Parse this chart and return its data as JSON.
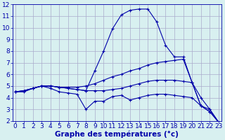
{
  "xlabel": "Graphe des températures (°c)",
  "hours": [
    0,
    1,
    2,
    3,
    4,
    5,
    6,
    7,
    8,
    9,
    10,
    11,
    12,
    13,
    14,
    15,
    16,
    17,
    18,
    19,
    20,
    21,
    22,
    23
  ],
  "line_peak": [
    4.5,
    4.6,
    4.8,
    5.0,
    5.0,
    4.9,
    4.8,
    4.7,
    4.6,
    6.3,
    8.0,
    9.9,
    11.1,
    11.5,
    11.6,
    11.6,
    10.5,
    8.5,
    7.5,
    7.5,
    5.3,
    4.0,
    3.0,
    1.9
  ],
  "line_high": [
    4.5,
    4.6,
    4.8,
    5.0,
    5.0,
    4.9,
    4.9,
    4.9,
    5.0,
    5.2,
    5.5,
    5.8,
    6.0,
    6.3,
    6.5,
    6.8,
    7.0,
    7.1,
    7.2,
    7.3,
    5.3,
    3.3,
    3.0,
    1.9
  ],
  "line_mid": [
    4.5,
    4.6,
    4.8,
    5.0,
    5.0,
    4.9,
    4.8,
    4.7,
    4.6,
    4.6,
    4.6,
    4.7,
    4.8,
    5.0,
    5.2,
    5.4,
    5.5,
    5.5,
    5.5,
    5.4,
    5.3,
    3.3,
    2.8,
    1.9
  ],
  "line_low": [
    4.5,
    4.5,
    4.8,
    5.0,
    4.8,
    4.5,
    4.4,
    4.3,
    3.0,
    3.7,
    3.7,
    4.1,
    4.2,
    3.8,
    4.0,
    4.2,
    4.3,
    4.3,
    4.2,
    4.1,
    4.0,
    3.3,
    2.8,
    1.9
  ],
  "line_color": "#0000aa",
  "bg_color": "#d8f0f0",
  "grid_color": "#aaaacc",
  "ylim": [
    2,
    12
  ],
  "yticks": [
    2,
    3,
    4,
    5,
    6,
    7,
    8,
    9,
    10,
    11,
    12
  ],
  "xticks": [
    0,
    1,
    2,
    3,
    4,
    5,
    6,
    7,
    8,
    9,
    10,
    11,
    12,
    13,
    14,
    15,
    16,
    17,
    18,
    19,
    20,
    21,
    22,
    23
  ],
  "label_color": "#0000aa",
  "xlabel_fontsize": 7.5,
  "tick_fontsize": 6.5
}
